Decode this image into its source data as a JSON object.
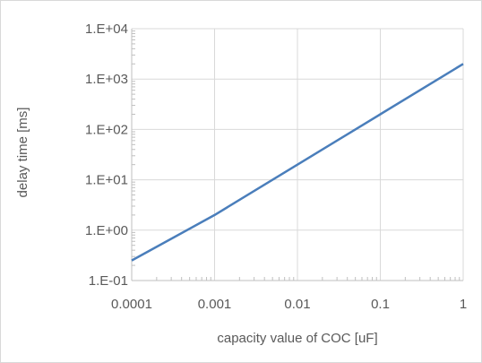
{
  "chart_data": {
    "type": "line",
    "title": "",
    "xlabel": "capacity value of COC [uF]",
    "ylabel": "delay time [ms]",
    "x_scale": "log",
    "y_scale": "log",
    "xlim": [
      0.0001,
      1
    ],
    "ylim": [
      0.1,
      10000
    ],
    "x_tick_labels": [
      "0.0001",
      "0.001",
      "0.01",
      "0.1",
      "1"
    ],
    "y_tick_labels": [
      "1.E-01",
      "1.E+00",
      "1.E+01",
      "1.E+02",
      "1.E+03",
      "1.E+04"
    ],
    "grid": true,
    "legend": false,
    "colors": {
      "series": "#4a7ebb",
      "grid": "#d9d9d9",
      "axis": "#bfbfbf",
      "text": "#595959"
    },
    "series": [
      {
        "x": [
          0.0001,
          0.001,
          0.01,
          0.1,
          1
        ],
        "y": [
          0.25,
          2,
          20,
          200,
          2000
        ]
      }
    ]
  }
}
